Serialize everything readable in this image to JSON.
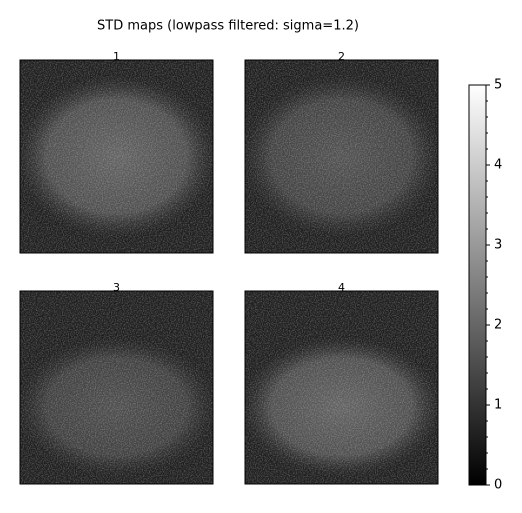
{
  "chart_data": {
    "type": "image-grid",
    "title": "STD maps (lowpass filtered: sigma=1.2)",
    "panels": [
      "1",
      "2",
      "3",
      "4"
    ],
    "colormap": "gray",
    "clim": [
      0,
      5
    ],
    "cticks": [
      0,
      1,
      2,
      3,
      4,
      5
    ],
    "cminorticks": [
      0.2,
      0.4,
      0.6,
      0.8,
      1.2,
      1.4,
      1.6,
      1.8,
      2.2,
      2.4,
      2.6,
      2.8,
      3.2,
      3.4,
      3.6,
      3.8,
      4.2,
      4.4,
      4.6,
      4.8
    ]
  }
}
